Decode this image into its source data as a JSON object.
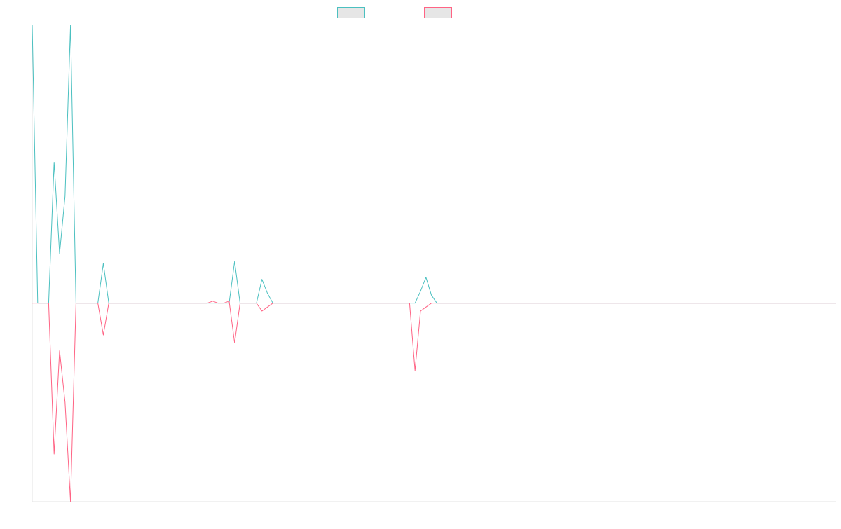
{
  "chart_data": {
    "type": "line",
    "title": "",
    "xlabel": "",
    "ylabel": "",
    "legend_position": "top",
    "grid": false,
    "x_axis_range": [
      0,
      147
    ],
    "ylim": [
      -100,
      140
    ],
    "series": [
      {
        "name": "",
        "color": "#4bc0c0",
        "fill": "#e6e6e6",
        "values": [
          140,
          0,
          0,
          0,
          71,
          25,
          54,
          140,
          0,
          0,
          0,
          0,
          0,
          20,
          0,
          0,
          0,
          0,
          0,
          0,
          0,
          0,
          0,
          0,
          0,
          0,
          0,
          0,
          0,
          0,
          0,
          0,
          0,
          0,
          0,
          0,
          0,
          21,
          0,
          0,
          0,
          0,
          12,
          5,
          0,
          0,
          0,
          0,
          0,
          0,
          0,
          0,
          0,
          0,
          0,
          0,
          0,
          0,
          0,
          0,
          0,
          0,
          0,
          0,
          0,
          0,
          0,
          0,
          0,
          0,
          0,
          6,
          13,
          4,
          0,
          0,
          0,
          0,
          0,
          0,
          0,
          0,
          0,
          0,
          0,
          0,
          0,
          0,
          0,
          0,
          0,
          0,
          0,
          0,
          0,
          0,
          0,
          0,
          0,
          0,
          0,
          0,
          0,
          0,
          0,
          0,
          0,
          0,
          0,
          0,
          0,
          0,
          0,
          0,
          0,
          0,
          0,
          0,
          0,
          0,
          0,
          0,
          0,
          0,
          0,
          0,
          0,
          0,
          0,
          0,
          0,
          0,
          0,
          0,
          0,
          0,
          0,
          0,
          0,
          0,
          0,
          0,
          0,
          0,
          0,
          0,
          0,
          0
        ]
      },
      {
        "name": "",
        "color": "#ff6384",
        "fill": "#e6e6e6",
        "values": [
          0,
          0,
          0,
          0,
          -76,
          -24,
          -50,
          -100,
          0,
          0,
          0,
          0,
          0,
          -16,
          0,
          0,
          0,
          0,
          0,
          0,
          0,
          0,
          0,
          0,
          0,
          0,
          0,
          0,
          0,
          0,
          0,
          0,
          0,
          1,
          0,
          0,
          1,
          -20,
          0,
          0,
          0,
          0,
          -4,
          -2,
          0,
          0,
          0,
          0,
          0,
          0,
          0,
          0,
          0,
          0,
          0,
          0,
          0,
          0,
          0,
          0,
          0,
          0,
          0,
          0,
          0,
          0,
          0,
          0,
          0,
          0,
          -34,
          -4,
          -2,
          0,
          0,
          0,
          0,
          0,
          0,
          0,
          0,
          0,
          0,
          0,
          0,
          0,
          0,
          0,
          0,
          0,
          0,
          0,
          0,
          0,
          0,
          0,
          0,
          0,
          0,
          0,
          0,
          0,
          0,
          0,
          0,
          0,
          0,
          0,
          0,
          0,
          0,
          0,
          0,
          0,
          0,
          0,
          0,
          0,
          0,
          0,
          0,
          0,
          0,
          0,
          0,
          0,
          0,
          0,
          0,
          0,
          0,
          0,
          0,
          0,
          0,
          0,
          0,
          0,
          0,
          0,
          0,
          0,
          0,
          0,
          0,
          0,
          0,
          0
        ]
      }
    ]
  }
}
